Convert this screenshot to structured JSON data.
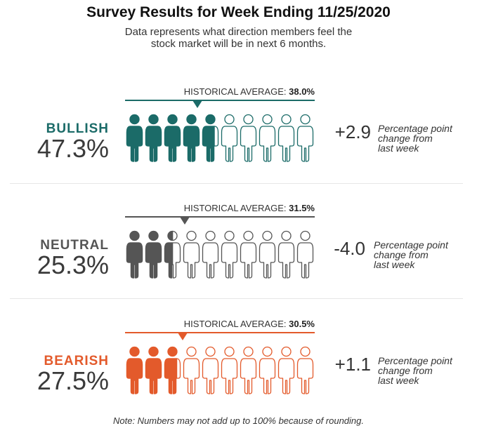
{
  "title": "Survey Results for Week Ending 11/25/2020",
  "subtitle_line1": "Data represents what direction members feel the",
  "subtitle_line2": "stock market will be in next 6 months.",
  "historical_label": "HISTORICAL AVERAGE:",
  "change_note_line1": "Percentage point",
  "change_note_line2": "change from",
  "change_note_line3": "last week",
  "note": "Note: Numbers may not add up to 100% because of rounding.",
  "chart_data": {
    "type": "pictograph",
    "icons_per_row": 10,
    "scale_max_percent": 100,
    "categories": [
      {
        "name": "BULLISH",
        "value": 47.3,
        "value_label": "47.3%",
        "historical_average": 38.0,
        "historical_average_label": "38.0%",
        "change": 2.9,
        "change_label": "+2.9",
        "color": "#1b6b68"
      },
      {
        "name": "NEUTRAL",
        "value": 25.3,
        "value_label": "25.3%",
        "historical_average": 31.5,
        "historical_average_label": "31.5%",
        "change": -4.0,
        "change_label": "-4.0",
        "color": "#555555"
      },
      {
        "name": "BEARISH",
        "value": 27.5,
        "value_label": "27.5%",
        "historical_average": 30.5,
        "historical_average_label": "30.5%",
        "change": 1.1,
        "change_label": "+1.1",
        "color": "#e35a2b"
      }
    ]
  }
}
